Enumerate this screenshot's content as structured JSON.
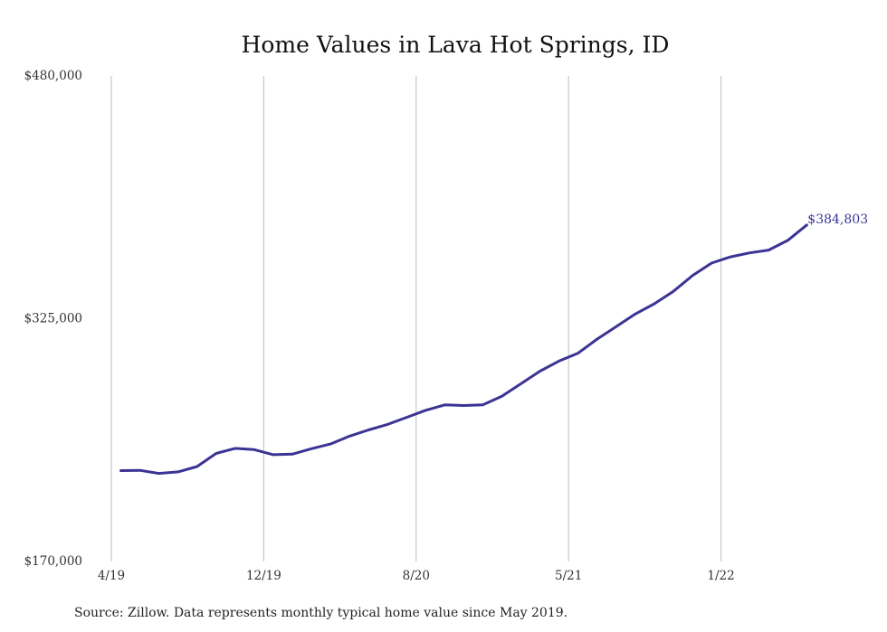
{
  "chart_data": {
    "type": "line",
    "title": "Home Values in Lava Hot Springs, ID",
    "xlabel": "",
    "ylabel": "",
    "ylim": [
      170000,
      480000
    ],
    "y_ticks": [
      "$480,000",
      "$325,000",
      "$170,000"
    ],
    "y_tick_values": [
      480000,
      325000,
      170000
    ],
    "x_ticks": [
      "4/19",
      "12/19",
      "8/20",
      "5/21",
      "1/22"
    ],
    "x_tick_months": [
      0,
      8,
      16,
      24,
      32
    ],
    "x_month_range": [
      0,
      37
    ],
    "grid": "vertical",
    "series": [
      {
        "color": "#3b3494",
        "x": [
          "5/19",
          "6/19",
          "7/19",
          "8/19",
          "9/19",
          "10/19",
          "11/19",
          "12/19",
          "1/20",
          "2/20",
          "3/20",
          "4/20",
          "5/20",
          "6/20",
          "7/20",
          "8/20",
          "9/20",
          "10/20",
          "11/20",
          "12/20",
          "1/21",
          "2/21",
          "3/21",
          "4/21",
          "5/21",
          "6/21",
          "7/21",
          "8/21",
          "9/21",
          "10/21",
          "11/21",
          "12/21",
          "1/22",
          "2/22",
          "3/22",
          "4/22",
          "5/22"
        ],
        "values": [
          228000,
          228200,
          226200,
          227200,
          230600,
          239000,
          242200,
          241400,
          238200,
          238500,
          242000,
          245000,
          250000,
          254000,
          257500,
          262000,
          266500,
          270000,
          269600,
          270000,
          275500,
          283500,
          291500,
          298000,
          303000,
          312000,
          320000,
          328000,
          334500,
          342500,
          352500,
          360500,
          364500,
          367000,
          368800,
          375000,
          384803
        ]
      }
    ],
    "end_label": "$384,803",
    "source": "Source: Zillow. Data represents monthly typical home value since May 2019."
  }
}
